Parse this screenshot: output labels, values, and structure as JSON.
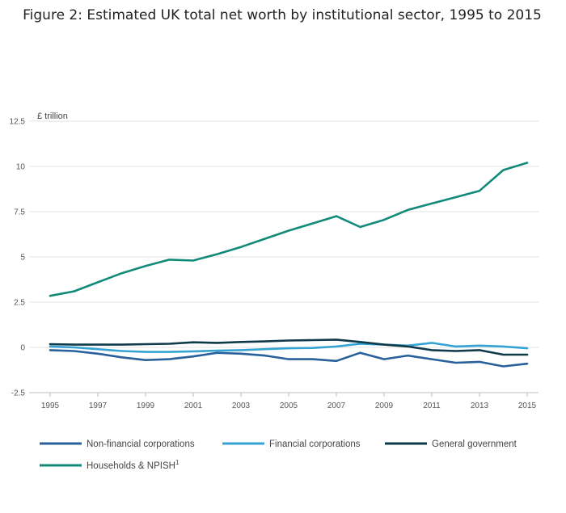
{
  "chart_data": {
    "type": "line",
    "title": "Figure 2: Estimated UK total net worth by institutional sector, 1995 to 2015",
    "unit_label": "£ trillion",
    "ylim": [
      -2.5,
      12.5
    ],
    "xlim": [
      1995,
      2015
    ],
    "y_ticks": [
      "12.5",
      "10",
      "7.5",
      "5",
      "2.5",
      "0",
      "-2.5"
    ],
    "x_ticks": [
      "1995",
      "1997",
      "1999",
      "2001",
      "2003",
      "2005",
      "2007",
      "2009",
      "2011",
      "2013",
      "2015"
    ],
    "grid": true,
    "legend_position": "bottom",
    "x": [
      1995,
      1996,
      1997,
      1998,
      1999,
      2000,
      2001,
      2002,
      2003,
      2004,
      2005,
      2006,
      2007,
      2008,
      2009,
      2010,
      2011,
      2012,
      2013,
      2014,
      2015
    ],
    "series": [
      {
        "name": "Non-financial corporations",
        "color": "#27609b",
        "values": [
          -0.15,
          -0.2,
          -0.35,
          -0.55,
          -0.7,
          -0.65,
          -0.5,
          -0.3,
          -0.35,
          -0.45,
          -0.65,
          -0.65,
          -0.75,
          -0.3,
          -0.65,
          -0.45,
          -0.65,
          -0.85,
          -0.8,
          -1.05,
          -0.9
        ]
      },
      {
        "name": "Financial corporations",
        "color": "#35a3d2",
        "values": [
          0.05,
          0.0,
          -0.1,
          -0.2,
          -0.25,
          -0.25,
          -0.22,
          -0.18,
          -0.15,
          -0.1,
          -0.05,
          -0.03,
          0.05,
          0.2,
          0.15,
          0.1,
          0.25,
          0.05,
          0.1,
          0.05,
          -0.05
        ]
      },
      {
        "name": "General government",
        "color": "#0e3a4a",
        "values": [
          0.18,
          0.15,
          0.15,
          0.15,
          0.18,
          0.2,
          0.28,
          0.25,
          0.3,
          0.33,
          0.38,
          0.4,
          0.43,
          0.3,
          0.15,
          0.05,
          -0.15,
          -0.2,
          -0.15,
          -0.4,
          -0.4
        ]
      },
      {
        "name": "Households & NPISH",
        "name_superscript": "1",
        "color": "#118a7a",
        "values": [
          2.85,
          3.1,
          3.6,
          4.1,
          4.5,
          4.85,
          4.8,
          5.15,
          5.55,
          6.0,
          6.45,
          6.85,
          7.25,
          6.65,
          7.05,
          7.6,
          7.95,
          8.3,
          8.65,
          9.8,
          10.2
        ]
      }
    ]
  }
}
